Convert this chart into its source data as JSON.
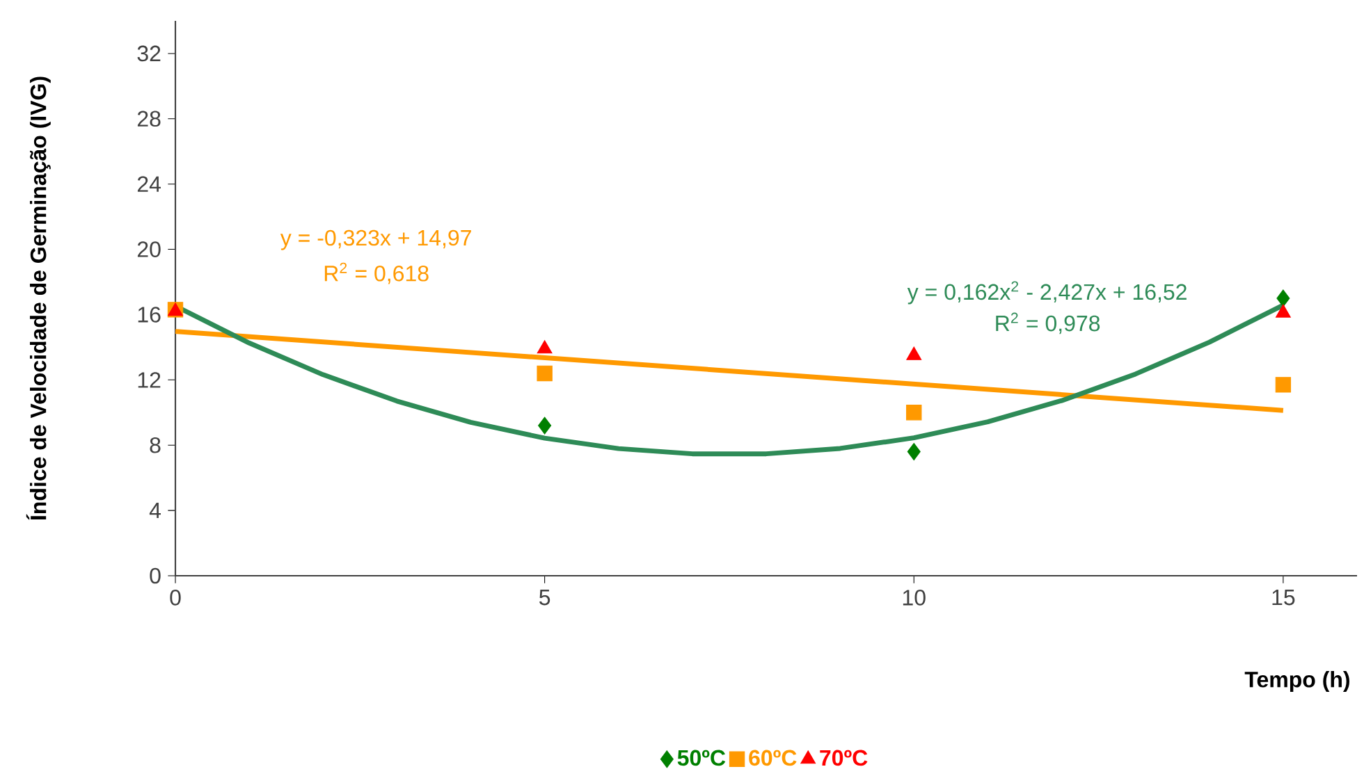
{
  "chart_data": {
    "type": "scatter",
    "xlabel": "Tempo (h)",
    "ylabel": "Índice de Velocidade de Germinação (IVG)",
    "x": [
      0,
      5,
      10,
      15
    ],
    "series": [
      {
        "name": "50ºC",
        "color": "#008000",
        "marker": "diamond",
        "values": [
          null,
          9.2,
          7.6,
          17.0
        ]
      },
      {
        "name": "60ºC",
        "color": "#ff9900",
        "marker": "square",
        "values": [
          16.3,
          12.4,
          10.0,
          11.7
        ]
      },
      {
        "name": "70ºC",
        "color": "#ff0000",
        "marker": "triangle",
        "values": [
          16.2,
          13.9,
          13.5,
          16.1
        ]
      },
      {
        "type": "line",
        "color": "#ff9900",
        "marker": "none",
        "x": [
          0,
          15
        ],
        "values": [
          14.97,
          10.13
        ]
      },
      {
        "type": "line",
        "color": "#2e8b57",
        "marker": "none",
        "x": [
          0,
          1,
          2,
          3,
          4,
          5,
          6,
          7,
          8,
          9,
          10,
          11,
          12,
          13,
          14,
          15
        ],
        "values": [
          16.52,
          14.26,
          12.32,
          10.7,
          9.4,
          8.43,
          7.79,
          7.47,
          7.47,
          7.8,
          8.45,
          9.43,
          10.73,
          12.36,
          14.31,
          16.58
        ]
      }
    ],
    "annotations": [
      "y = -0,323x + 14,97",
      "R$^{2}$ = 0,618",
      "y = 0,162x$^{2}$ - 2,427x + 16,52",
      "R$^{2}$ = 0,978"
    ],
    "xlim": [
      0,
      16
    ],
    "xticks": [
      0,
      5,
      10,
      15
    ],
    "ylim": [
      0,
      34
    ],
    "yticks": [
      0,
      4,
      8,
      12,
      16,
      20,
      24,
      28,
      32
    ],
    "grid": false,
    "legend": "bottom"
  }
}
